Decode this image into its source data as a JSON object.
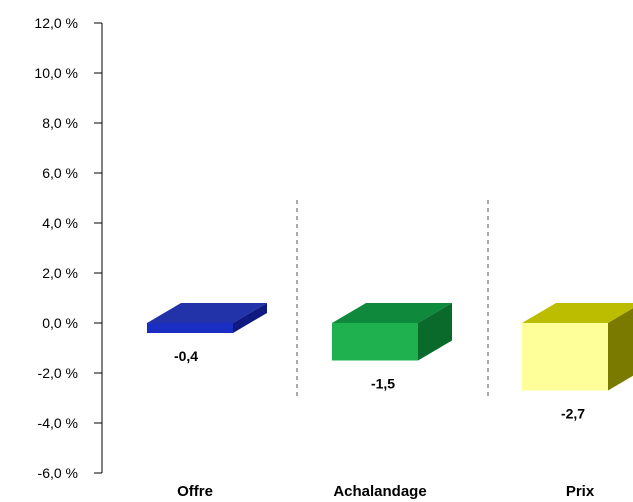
{
  "chart_data": {
    "type": "bar",
    "categories": [
      "Offre",
      "Achalandage",
      "Prix"
    ],
    "values": [
      -0.4,
      -1.5,
      -2.7
    ],
    "data_labels": [
      "-0,4",
      "-1,5",
      "-2,7"
    ],
    "ylim": [
      -6,
      12
    ],
    "yticks": [
      {
        "value": 12,
        "label": "12,0 %"
      },
      {
        "value": 10,
        "label": "10,0 %"
      },
      {
        "value": 8,
        "label": "8,0 %"
      },
      {
        "value": 6,
        "label": "6,0 %"
      },
      {
        "value": 4,
        "label": "4,0 %"
      },
      {
        "value": 2,
        "label": "2,0 %"
      },
      {
        "value": 0,
        "label": "0,0 %"
      },
      {
        "value": -2,
        "label": "-2,0 %"
      },
      {
        "value": -4,
        "label": "-4,0 %"
      },
      {
        "value": -6,
        "label": "-6,0 %"
      }
    ],
    "colors": [
      {
        "front": "#1a2ec4",
        "top": "#2233aa",
        "side": "#0f1a80"
      },
      {
        "front": "#1fb04f",
        "top": "#0f8a3c",
        "side": "#0a6a2c"
      },
      {
        "front": "#ffff99",
        "top": "#bcbc00",
        "side": "#7a7a00"
      }
    ],
    "separator_color": "#aaaaaa",
    "grid": false
  }
}
